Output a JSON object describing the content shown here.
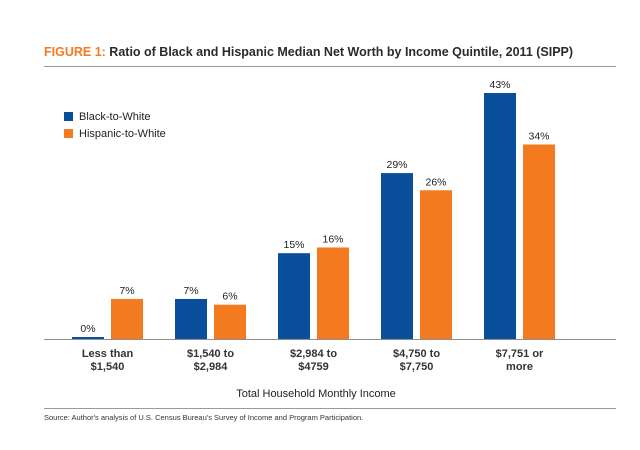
{
  "figure": {
    "label": "FIGURE 1:",
    "title": "Ratio of Black and Hispanic Median Net Worth by Income Quintile, 2011 (SIPP)"
  },
  "source": "Source:  Author's analysis of U.S. Census Bureau's Survey of Income and Program Participation.",
  "colors": {
    "black_to_white": "#0a4f9c",
    "hispanic_to_white": "#f47a20"
  },
  "chart_data": {
    "type": "bar",
    "title": "Ratio of Black and Hispanic Median Net Worth by Income Quintile, 2011 (SIPP)",
    "xlabel": "Total Household Monthly Income",
    "ylabel": "",
    "ylim": [
      0,
      43
    ],
    "grid": false,
    "legend_position": "top-left",
    "categories": [
      [
        "Less than",
        "$1,540"
      ],
      [
        "$1,540 to",
        "$2,984"
      ],
      [
        "$2,984 to",
        "$4759"
      ],
      [
        "$4,750 to",
        "$7,750"
      ],
      [
        "$7,751 or",
        "more"
      ]
    ],
    "series": [
      {
        "name": "Black-to-White",
        "color": "#0a4f9c",
        "values": [
          0,
          7,
          15,
          29,
          43
        ],
        "labels": [
          "0%",
          "7%",
          "15%",
          "29%",
          "43%"
        ]
      },
      {
        "name": "Hispanic-to-White",
        "color": "#f47a20",
        "values": [
          7,
          6,
          16,
          26,
          34
        ],
        "labels": [
          "7%",
          "6%",
          "16%",
          "26%",
          "34%"
        ]
      }
    ]
  }
}
